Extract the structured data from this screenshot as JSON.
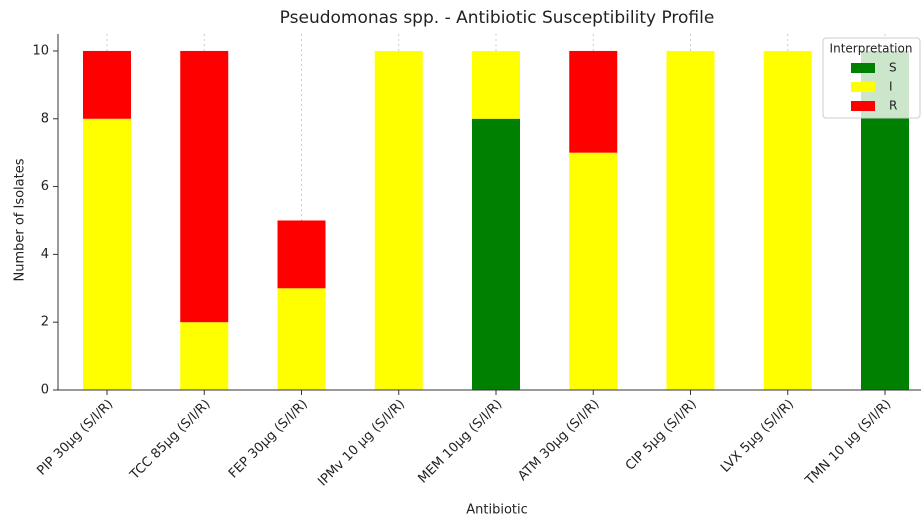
{
  "chart_data": {
    "type": "stacked_bar",
    "title": "Pseudomonas spp. - Antibiotic Susceptibility Profile",
    "x_label": "Antibiotic",
    "y_label": "Number of Isolates",
    "categories": [
      "PIP 30µg (S/I/R)",
      "TCC 85µg (S/I/R)",
      "FEP 30µg (S/I/R)",
      "IPMv 10 µg (S/I/R)",
      "MEM 10µg (S/I/R)",
      "ATM 30µg (S/I/R)",
      "CIP 5µg (S/I/R)",
      "LVX 5µg (S/I/R)",
      "TMN 10 µg (S/I/R)"
    ],
    "series": [
      {
        "name": "S",
        "color": "#008000",
        "values": [
          0,
          0,
          0,
          0,
          8,
          0,
          0,
          0,
          10
        ]
      },
      {
        "name": "I",
        "color": "#ffff00",
        "values": [
          8,
          2,
          3,
          10,
          2,
          7,
          10,
          10,
          0
        ]
      },
      {
        "name": "R",
        "color": "#ff0000",
        "values": [
          2,
          8,
          2,
          0,
          0,
          3,
          0,
          0,
          0
        ]
      }
    ],
    "legend_title": "Interpretation",
    "legend": "upper right",
    "ylim": [
      0,
      10.5
    ],
    "yticks": [
      0,
      2,
      4,
      6,
      8,
      10
    ],
    "grid": true
  }
}
